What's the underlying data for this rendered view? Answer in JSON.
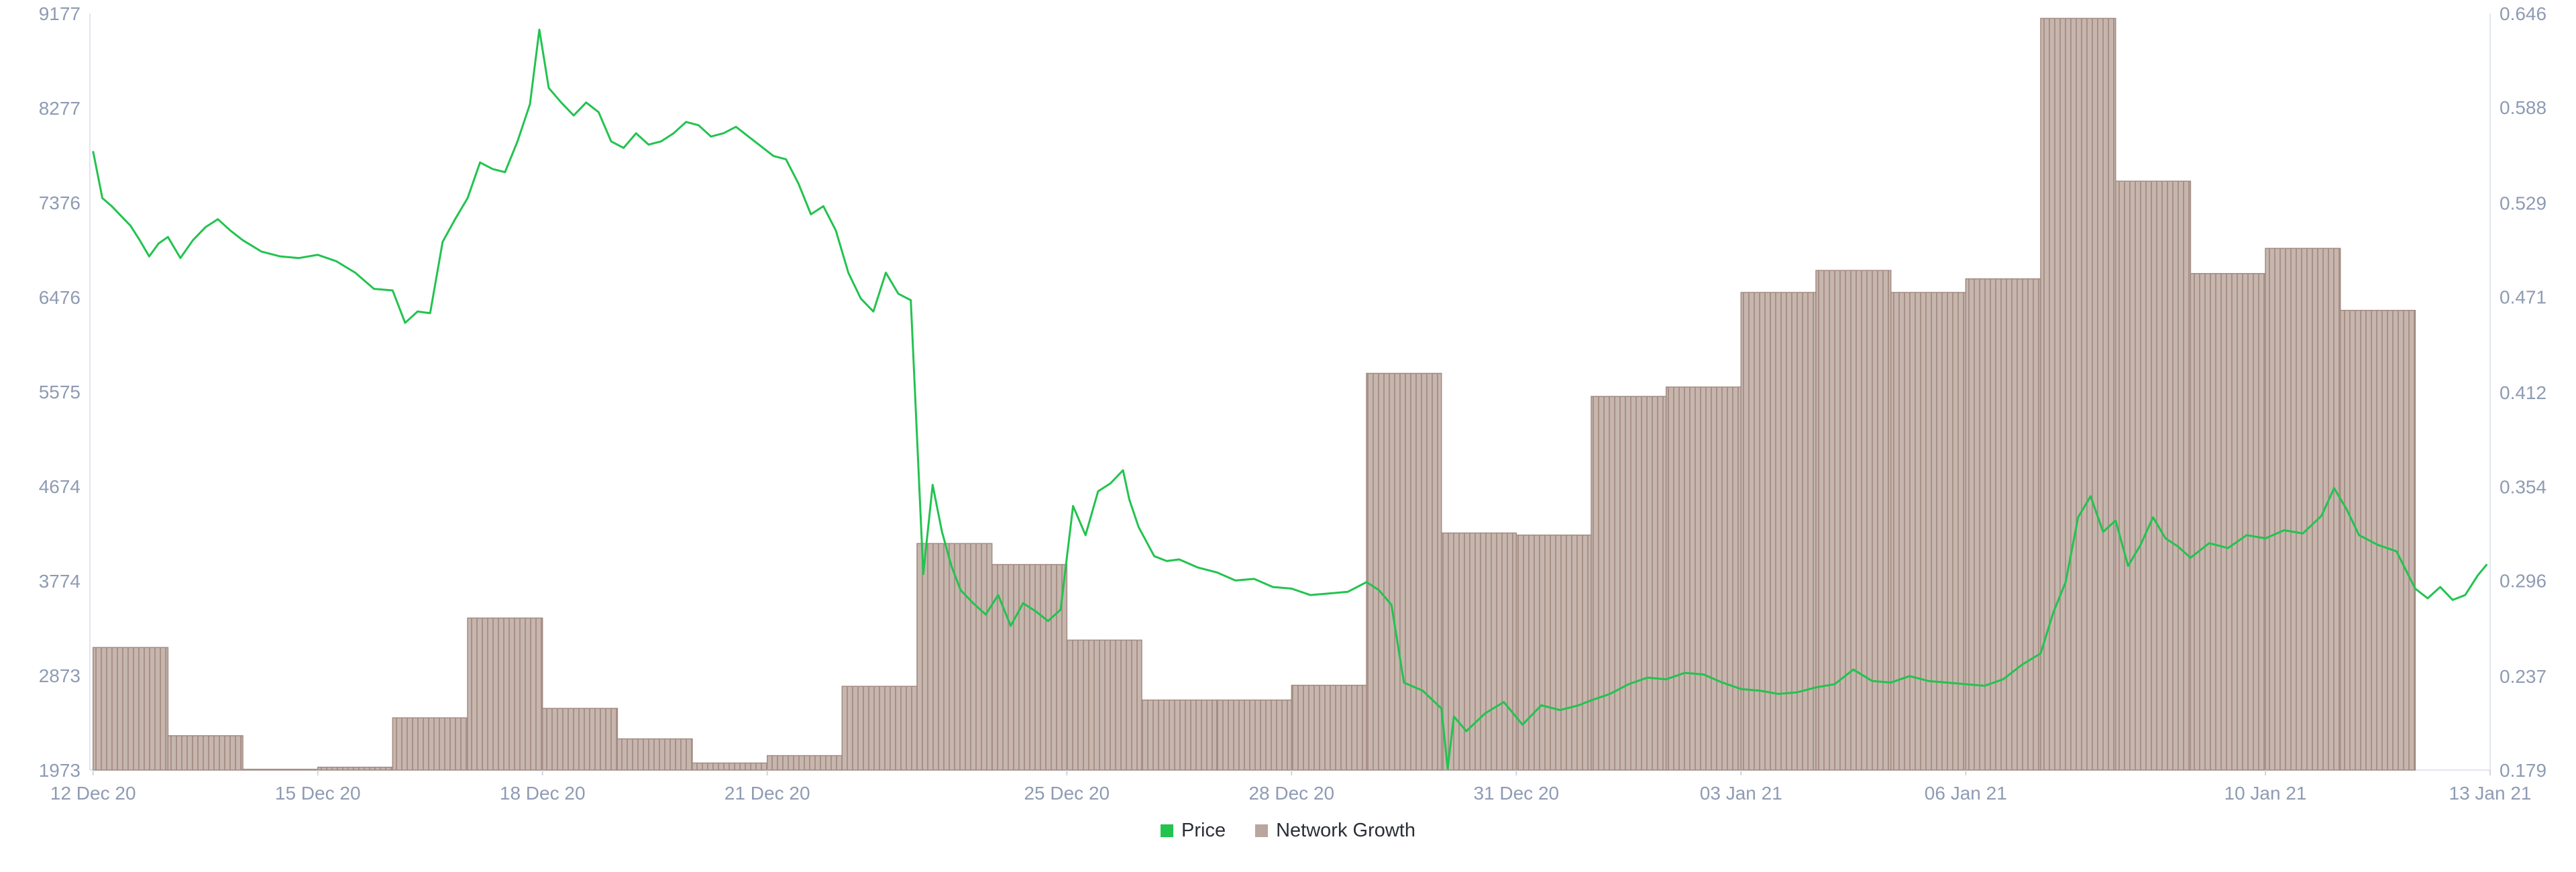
{
  "chart_data": {
    "type": "bar+line",
    "x_ticks": [
      "12 Dec 20",
      "15 Dec 20",
      "18 Dec 20",
      "21 Dec 20",
      "25 Dec 20",
      "28 Dec 20",
      "31 Dec 20",
      "03 Jan 21",
      "06 Jan 21",
      "10 Jan 21",
      "13 Jan 21"
    ],
    "x_range": [
      "2020-12-11T23:00",
      "2021-01-13T00:00"
    ],
    "y_left": {
      "ticks": [
        "9177",
        "8277",
        "7376",
        "6476",
        "5575",
        "4674",
        "3774",
        "2873",
        "1973"
      ],
      "range": [
        1973,
        9177
      ]
    },
    "y_right": {
      "ticks": [
        "0.646",
        "0.588",
        "0.529",
        "0.471",
        "0.412",
        "0.354",
        "0.296",
        "0.237",
        "0.179"
      ],
      "range": [
        0.179,
        0.646
      ]
    },
    "legend": [
      {
        "name": "Price",
        "color": "#22c34f"
      },
      {
        "name": "Network Growth",
        "color": "#b9a69f"
      }
    ],
    "series": [
      {
        "name": "Network Growth",
        "type": "bar",
        "axis": "left",
        "color": "#b9a69f",
        "days": [
          "12 Dec 20",
          "13 Dec 20",
          "14 Dec 20",
          "15 Dec 20",
          "16 Dec 20",
          "17 Dec 20",
          "18 Dec 20",
          "19 Dec 20",
          "20 Dec 20",
          "21 Dec 20",
          "22 Dec 20",
          "23 Dec 20",
          "24 Dec 20",
          "25 Dec 20",
          "26 Dec 20",
          "27 Dec 20",
          "28 Dec 20",
          "29 Dec 20",
          "30 Dec 20",
          "31 Dec 20",
          "01 Jan 21",
          "02 Jan 21",
          "03 Jan 21",
          "04 Jan 21",
          "05 Jan 21",
          "06 Jan 21",
          "07 Jan 21",
          "08 Jan 21",
          "09 Jan 21",
          "10 Jan 21",
          "11 Jan 21"
        ],
        "values": [
          3140,
          2300,
          1980,
          2000,
          2470,
          3420,
          2560,
          2270,
          2040,
          2110,
          2770,
          4130,
          3930,
          3210,
          2640,
          2640,
          2780,
          5750,
          4230,
          4210,
          5530,
          5620,
          6520,
          6730,
          6520,
          6650,
          9130,
          7580,
          6700,
          6940,
          6350
        ],
        "last_partial_fraction": 0.05
      },
      {
        "name": "Price",
        "type": "line",
        "axis": "right",
        "color": "#22c34f",
        "points": [
          [
            "2020-12-12T00:00",
            0.561
          ],
          [
            "2020-12-12T03:00",
            0.532
          ],
          [
            "2020-12-12T06:00",
            0.527
          ],
          [
            "2020-12-12T09:00",
            0.521
          ],
          [
            "2020-12-12T12:00",
            0.515
          ],
          [
            "2020-12-12T15:00",
            0.506
          ],
          [
            "2020-12-12T18:00",
            0.496
          ],
          [
            "2020-12-12T21:00",
            0.504
          ],
          [
            "2020-12-13T00:00",
            0.508
          ],
          [
            "2020-12-13T04:00",
            0.495
          ],
          [
            "2020-12-13T08:00",
            0.506
          ],
          [
            "2020-12-13T12:00",
            0.514
          ],
          [
            "2020-12-13T16:00",
            0.519
          ],
          [
            "2020-12-13T20:00",
            0.512
          ],
          [
            "2020-12-14T00:00",
            0.506
          ],
          [
            "2020-12-14T06:00",
            0.499
          ],
          [
            "2020-12-14T12:00",
            0.496
          ],
          [
            "2020-12-14T18:00",
            0.495
          ],
          [
            "2020-12-15T00:00",
            0.497
          ],
          [
            "2020-12-15T06:00",
            0.493
          ],
          [
            "2020-12-15T12:00",
            0.486
          ],
          [
            "2020-12-15T18:00",
            0.476
          ],
          [
            "2020-12-16T00:00",
            0.475
          ],
          [
            "2020-12-16T04:00",
            0.455
          ],
          [
            "2020-12-16T08:00",
            0.462
          ],
          [
            "2020-12-16T12:00",
            0.461
          ],
          [
            "2020-12-16T16:00",
            0.505
          ],
          [
            "2020-12-16T20:00",
            0.519
          ],
          [
            "2020-12-17T00:00",
            0.532
          ],
          [
            "2020-12-17T04:00",
            0.554
          ],
          [
            "2020-12-17T08:00",
            0.55
          ],
          [
            "2020-12-17T12:00",
            0.548
          ],
          [
            "2020-12-17T16:00",
            0.567
          ],
          [
            "2020-12-17T20:00",
            0.59
          ],
          [
            "2020-12-17T23:00",
            0.636
          ],
          [
            "2020-12-18T02:00",
            0.6
          ],
          [
            "2020-12-18T06:00",
            0.591
          ],
          [
            "2020-12-18T10:00",
            0.583
          ],
          [
            "2020-12-18T14:00",
            0.591
          ],
          [
            "2020-12-18T18:00",
            0.585
          ],
          [
            "2020-12-18T22:00",
            0.567
          ],
          [
            "2020-12-19T02:00",
            0.563
          ],
          [
            "2020-12-19T06:00",
            0.572
          ],
          [
            "2020-12-19T10:00",
            0.565
          ],
          [
            "2020-12-19T14:00",
            0.567
          ],
          [
            "2020-12-19T18:00",
            0.572
          ],
          [
            "2020-12-19T22:00",
            0.579
          ],
          [
            "2020-12-20T02:00",
            0.577
          ],
          [
            "2020-12-20T06:00",
            0.57
          ],
          [
            "2020-12-20T10:00",
            0.572
          ],
          [
            "2020-12-20T14:00",
            0.576
          ],
          [
            "2020-12-20T18:00",
            0.57
          ],
          [
            "2020-12-20T22:00",
            0.564
          ],
          [
            "2020-12-21T02:00",
            0.558
          ],
          [
            "2020-12-21T06:00",
            0.556
          ],
          [
            "2020-12-21T10:00",
            0.541
          ],
          [
            "2020-12-21T14:00",
            0.522
          ],
          [
            "2020-12-21T18:00",
            0.527
          ],
          [
            "2020-12-21T22:00",
            0.512
          ],
          [
            "2020-12-22T02:00",
            0.486
          ],
          [
            "2020-12-22T06:00",
            0.47
          ],
          [
            "2020-12-22T10:00",
            0.462
          ],
          [
            "2020-12-22T14:00",
            0.486
          ],
          [
            "2020-12-22T18:00",
            0.473
          ],
          [
            "2020-12-22T22:00",
            0.469
          ],
          [
            "2020-12-23T02:00",
            0.3
          ],
          [
            "2020-12-23T05:00",
            0.355
          ],
          [
            "2020-12-23T08:00",
            0.326
          ],
          [
            "2020-12-23T11:00",
            0.305
          ],
          [
            "2020-12-23T14:00",
            0.29
          ],
          [
            "2020-12-23T18:00",
            0.282
          ],
          [
            "2020-12-23T22:00",
            0.275
          ],
          [
            "2020-12-24T02:00",
            0.287
          ],
          [
            "2020-12-24T06:00",
            0.268
          ],
          [
            "2020-12-24T10:00",
            0.282
          ],
          [
            "2020-12-24T14:00",
            0.277
          ],
          [
            "2020-12-24T18:00",
            0.271
          ],
          [
            "2020-12-24T22:00",
            0.278
          ],
          [
            "2020-12-25T02:00",
            0.342
          ],
          [
            "2020-12-25T06:00",
            0.324
          ],
          [
            "2020-12-25T10:00",
            0.351
          ],
          [
            "2020-12-25T14:00",
            0.356
          ],
          [
            "2020-12-25T18:00",
            0.364
          ],
          [
            "2020-12-25T20:00",
            0.346
          ],
          [
            "2020-12-25T23:00",
            0.329
          ],
          [
            "2020-12-26T04:00",
            0.311
          ],
          [
            "2020-12-26T08:00",
            0.308
          ],
          [
            "2020-12-26T12:00",
            0.309
          ],
          [
            "2020-12-26T18:00",
            0.304
          ],
          [
            "2020-12-27T00:00",
            0.301
          ],
          [
            "2020-12-27T06:00",
            0.296
          ],
          [
            "2020-12-27T12:00",
            0.297
          ],
          [
            "2020-12-27T18:00",
            0.292
          ],
          [
            "2020-12-28T00:00",
            0.291
          ],
          [
            "2020-12-28T06:00",
            0.287
          ],
          [
            "2020-12-28T12:00",
            0.288
          ],
          [
            "2020-12-28T18:00",
            0.289
          ],
          [
            "2020-12-29T00:00",
            0.295
          ],
          [
            "2020-12-29T04:00",
            0.29
          ],
          [
            "2020-12-29T08:00",
            0.281
          ],
          [
            "2020-12-29T12:00",
            0.233
          ],
          [
            "2020-12-29T18:00",
            0.228
          ],
          [
            "2020-12-30T00:00",
            0.217
          ],
          [
            "2020-12-30T02:00",
            0.18
          ],
          [
            "2020-12-30T04:00",
            0.212
          ],
          [
            "2020-12-30T08:00",
            0.203
          ],
          [
            "2020-12-30T14:00",
            0.214
          ],
          [
            "2020-12-30T20:00",
            0.221
          ],
          [
            "2020-12-31T02:00",
            0.207
          ],
          [
            "2020-12-31T08:00",
            0.219
          ],
          [
            "2020-12-31T14:00",
            0.216
          ],
          [
            "2020-12-31T20:00",
            0.219
          ],
          [
            "2021-01-01T00:00",
            0.222
          ],
          [
            "2021-01-01T06:00",
            0.226
          ],
          [
            "2021-01-01T12:00",
            0.232
          ],
          [
            "2021-01-01T18:00",
            0.236
          ],
          [
            "2021-01-02T00:00",
            0.235
          ],
          [
            "2021-01-02T06:00",
            0.239
          ],
          [
            "2021-01-02T12:00",
            0.238
          ],
          [
            "2021-01-02T18:00",
            0.233
          ],
          [
            "2021-01-03T00:00",
            0.229
          ],
          [
            "2021-01-03T06:00",
            0.228
          ],
          [
            "2021-01-03T12:00",
            0.226
          ],
          [
            "2021-01-03T18:00",
            0.227
          ],
          [
            "2021-01-04T00:00",
            0.23
          ],
          [
            "2021-01-04T06:00",
            0.232
          ],
          [
            "2021-01-04T12:00",
            0.241
          ],
          [
            "2021-01-04T18:00",
            0.234
          ],
          [
            "2021-01-05T00:00",
            0.233
          ],
          [
            "2021-01-05T06:00",
            0.237
          ],
          [
            "2021-01-05T12:00",
            0.234
          ],
          [
            "2021-01-05T18:00",
            0.233
          ],
          [
            "2021-01-06T00:00",
            0.232
          ],
          [
            "2021-01-06T06:00",
            0.231
          ],
          [
            "2021-01-06T12:00",
            0.235
          ],
          [
            "2021-01-06T18:00",
            0.244
          ],
          [
            "2021-01-07T00:00",
            0.251
          ],
          [
            "2021-01-07T04:00",
            0.276
          ],
          [
            "2021-01-07T08:00",
            0.295
          ],
          [
            "2021-01-07T12:00",
            0.335
          ],
          [
            "2021-01-07T16:00",
            0.348
          ],
          [
            "2021-01-07T20:00",
            0.326
          ],
          [
            "2021-01-08T00:00",
            0.333
          ],
          [
            "2021-01-08T04:00",
            0.305
          ],
          [
            "2021-01-08T08:00",
            0.318
          ],
          [
            "2021-01-08T12:00",
            0.335
          ],
          [
            "2021-01-08T16:00",
            0.322
          ],
          [
            "2021-01-08T20:00",
            0.317
          ],
          [
            "2021-01-09T00:00",
            0.31
          ],
          [
            "2021-01-09T06:00",
            0.319
          ],
          [
            "2021-01-09T12:00",
            0.316
          ],
          [
            "2021-01-09T18:00",
            0.324
          ],
          [
            "2021-01-10T00:00",
            0.322
          ],
          [
            "2021-01-10T06:00",
            0.327
          ],
          [
            "2021-01-10T12:00",
            0.325
          ],
          [
            "2021-01-10T18:00",
            0.336
          ],
          [
            "2021-01-10T22:00",
            0.353
          ],
          [
            "2021-01-11T02:00",
            0.34
          ],
          [
            "2021-01-11T06:00",
            0.324
          ],
          [
            "2021-01-11T12:00",
            0.318
          ],
          [
            "2021-01-11T18:00",
            0.314
          ],
          [
            "2021-01-12T00:00",
            0.291
          ],
          [
            "2021-01-12T04:00",
            0.285
          ],
          [
            "2021-01-12T08:00",
            0.292
          ],
          [
            "2021-01-12T12:00",
            0.284
          ],
          [
            "2021-01-12T16:00",
            0.287
          ],
          [
            "2021-01-12T20:00",
            0.299
          ],
          [
            "2021-01-12T23:00",
            0.306
          ]
        ]
      }
    ]
  }
}
